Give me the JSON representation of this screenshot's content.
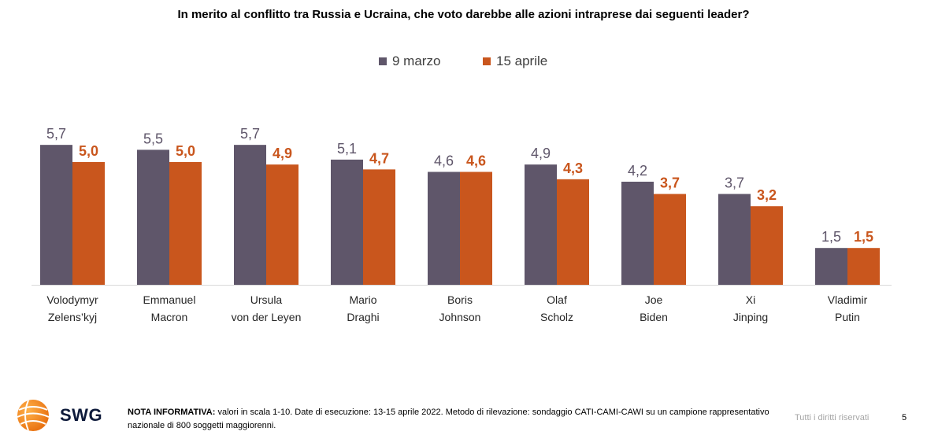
{
  "title": "In merito al conflitto tra Russia e Ucraina, che voto darebbe alle azioni intraprese dai seguenti leader?",
  "legend": [
    {
      "label": "9 marzo",
      "color": "#5f566a"
    },
    {
      "label": "15 aprile",
      "color": "#c9561d"
    }
  ],
  "chart_data": {
    "type": "bar",
    "title": "In merito al conflitto tra Russia e Ucraina, che voto darebbe alle azioni intraprese dai seguenti leader?",
    "categories": [
      [
        "Volodymyr",
        "Zelens’kyj"
      ],
      [
        "Emmanuel",
        "Macron"
      ],
      [
        "Ursula",
        "von der Leyen"
      ],
      [
        "Mario",
        "Draghi"
      ],
      [
        "Boris",
        "Johnson"
      ],
      [
        "Olaf",
        "Scholz"
      ],
      [
        "Joe",
        "Biden"
      ],
      [
        "Xi",
        "Jinping"
      ],
      [
        "Vladimir",
        "Putin"
      ]
    ],
    "series": [
      {
        "name": "9 marzo",
        "color": "#5f566a",
        "label_color": "#5f566a",
        "values": [
          5.7,
          5.5,
          5.7,
          5.1,
          4.6,
          4.9,
          4.2,
          3.7,
          1.5
        ],
        "labels": [
          "5,7",
          "5,5",
          "5,7",
          "5,1",
          "4,6",
          "4,9",
          "4,2",
          "3,7",
          "1,5"
        ]
      },
      {
        "name": "15 aprile",
        "color": "#c9561d",
        "label_color": "#c9561d",
        "values": [
          5.0,
          5.0,
          4.9,
          4.7,
          4.6,
          4.3,
          3.7,
          3.2,
          1.5
        ],
        "labels": [
          "5,0",
          "5,0",
          "4,9",
          "4,7",
          "4,6",
          "4,3",
          "3,7",
          "3,2",
          "1,5"
        ]
      }
    ],
    "ylim": [
      0,
      10
    ],
    "grid": false,
    "legend_position": "top-center"
  },
  "footer": {
    "note_label": "NOTA INFORMATIVA:",
    "note_text": " valori in scala 1-10. Date di esecuzione: 13-15 aprile 2022. Metodo di rilevazione: sondaggio CATI-CAMI-CAWI su un campione rappresentativo nazionale di 800 soggetti maggiorenni.",
    "rights": "Tutti i diritti riservati",
    "page": "5",
    "logo_text": "SWG"
  }
}
